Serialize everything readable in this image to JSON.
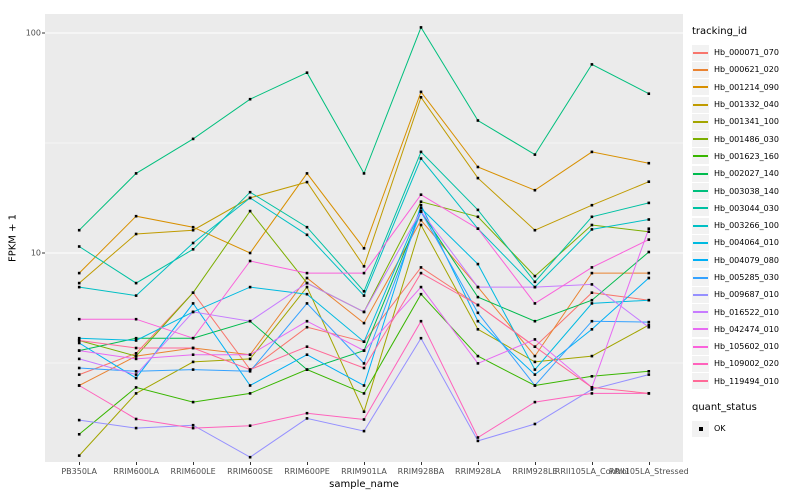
{
  "colors": {
    "background": "#FFFFFF",
    "panel_bg": "#EBEBEB",
    "grid": "#FFFFFF",
    "axis_text": "#4D4D4D",
    "text": "#000000",
    "legend_key_bg": "#F2F2F2",
    "marker": "#000000"
  },
  "axes": {
    "y_title": "FPKM + 1",
    "x_title": "sample_name"
  },
  "legend": {
    "tracking_title": "tracking_id",
    "quant_title": "quant_status",
    "quant_items": [
      {
        "label": "OK",
        "marker": "black-square"
      }
    ]
  },
  "chart_data": {
    "type": "line",
    "title": "",
    "xlabel": "sample_name",
    "ylabel": "FPKM + 1",
    "yscale": "log10",
    "ylim": [
      1.05,
      125
    ],
    "y_major_ticks": [
      100,
      10
    ],
    "y_minor_gridlines": [
      31.62,
      3.162
    ],
    "grid": true,
    "legend_position": "right",
    "marker": {
      "shape": "square",
      "color": "#000000",
      "size": 2.6,
      "meaning": "quant_status OK"
    },
    "categories": [
      "PB350LA",
      "RRIM600LA",
      "RRIM600LE",
      "RRIM600SE",
      "RRIM600PE",
      "RRIM901LA",
      "RRIM928BA",
      "RRIM928LA",
      "RRIM928LE",
      "RRII105LA_Control",
      "RRII105LA_Stressed"
    ],
    "series": [
      {
        "name": "Hb_000071_070",
        "color": "#F8766D",
        "values": [
          2.8,
          3.5,
          6.6,
          2.95,
          4.6,
          3.95,
          8.6,
          5.8,
          3.75,
          6.6,
          6.1
        ]
      },
      {
        "name": "Hb_000621_020",
        "color": "#EA8331",
        "values": [
          2.5,
          3.4,
          3.7,
          3.45,
          7.7,
          4.8,
          14.1,
          7.0,
          3.4,
          8.1,
          8.1
        ]
      },
      {
        "name": "Hb_001214_090",
        "color": "#D89000",
        "values": [
          8.1,
          14.7,
          13.1,
          10.0,
          23.0,
          10.5,
          54.0,
          24.6,
          19.3,
          28.8,
          25.6
        ]
      },
      {
        "name": "Hb_001332_040",
        "color": "#C09B00",
        "values": [
          7.3,
          12.2,
          12.7,
          17.8,
          21.0,
          8.7,
          51.0,
          21.9,
          12.7,
          16.5,
          21.1
        ]
      },
      {
        "name": "Hb_001341_100",
        "color": "#A3A500",
        "values": [
          1.2,
          2.3,
          3.2,
          3.3,
          7.0,
          1.9,
          13.4,
          4.5,
          3.2,
          3.4,
          4.7
        ]
      },
      {
        "name": "Hb_001486_030",
        "color": "#7CAE00",
        "values": [
          4.0,
          3.4,
          6.6,
          15.5,
          7.3,
          5.4,
          17.1,
          14.6,
          7.85,
          13.4,
          12.5
        ]
      },
      {
        "name": "Hb_001623_160",
        "color": "#39B600",
        "values": [
          1.5,
          2.45,
          2.1,
          2.3,
          2.95,
          2.3,
          6.5,
          3.4,
          2.5,
          2.75,
          2.9
        ]
      },
      {
        "name": "Hb_002027_140",
        "color": "#00BB4E",
        "values": [
          3.6,
          4.1,
          4.1,
          4.9,
          2.95,
          3.6,
          15.4,
          6.3,
          4.9,
          6.1,
          10.1
        ]
      },
      {
        "name": "Hb_003038_140",
        "color": "#00BF7D",
        "values": [
          12.7,
          23.0,
          33.0,
          50.0,
          66.0,
          23.0,
          106.0,
          40.0,
          28.0,
          72.0,
          53.0
        ]
      },
      {
        "name": "Hb_003044_030",
        "color": "#00C1A3",
        "values": [
          10.7,
          7.3,
          10.4,
          18.9,
          13.1,
          6.7,
          28.8,
          15.7,
          7.4,
          14.6,
          16.9
        ]
      },
      {
        "name": "Hb_003266_100",
        "color": "#00BFC4",
        "values": [
          7.0,
          6.4,
          11.1,
          17.8,
          12.1,
          6.4,
          26.9,
          12.9,
          7.0,
          12.8,
          14.2
        ]
      },
      {
        "name": "Hb_004064_010",
        "color": "#00BAE0",
        "values": [
          4.1,
          4.0,
          5.4,
          7.0,
          6.5,
          3.95,
          16.0,
          8.9,
          2.95,
          5.9,
          6.1
        ]
      },
      {
        "name": "Hb_004079_080",
        "color": "#00B0F6",
        "values": [
          3.9,
          2.7,
          5.9,
          2.5,
          3.45,
          2.5,
          16.5,
          4.9,
          2.8,
          4.5,
          7.7
        ]
      },
      {
        "name": "Hb_005285_030",
        "color": "#35A2FF",
        "values": [
          3.0,
          2.9,
          2.95,
          2.9,
          5.9,
          3.15,
          15.4,
          5.35,
          2.5,
          4.9,
          4.85
        ]
      },
      {
        "name": "Hb_009687_010",
        "color": "#9590FF",
        "values": [
          1.74,
          1.6,
          1.65,
          1.18,
          1.77,
          1.55,
          4.1,
          1.4,
          1.67,
          2.4,
          2.8
        ]
      },
      {
        "name": "Hb_016522_010",
        "color": "#C77CFF",
        "values": [
          3.3,
          2.8,
          5.4,
          4.9,
          7.3,
          5.4,
          15.5,
          7.0,
          7.0,
          7.2,
          4.6
        ]
      },
      {
        "name": "Hb_042474_010",
        "color": "#E76BF3",
        "values": [
          3.6,
          3.3,
          3.45,
          3.45,
          4.9,
          3.6,
          7.0,
          3.15,
          4.05,
          2.45,
          12.9
        ]
      },
      {
        "name": "Hb_105602_010",
        "color": "#FA62DB",
        "values": [
          5.0,
          5.0,
          4.1,
          9.2,
          8.1,
          8.1,
          18.4,
          12.9,
          5.9,
          8.6,
          11.5
        ]
      },
      {
        "name": "Hb_109002_020",
        "color": "#FF62BC",
        "values": [
          2.5,
          1.76,
          1.6,
          1.64,
          1.87,
          1.75,
          4.9,
          1.45,
          2.1,
          2.3,
          2.3
        ]
      },
      {
        "name": "Hb_119494_010",
        "color": "#FF6A98",
        "values": [
          4.0,
          3.7,
          3.7,
          2.95,
          3.75,
          3.0,
          8.1,
          5.8,
          3.75,
          2.45,
          2.3
        ]
      }
    ]
  }
}
